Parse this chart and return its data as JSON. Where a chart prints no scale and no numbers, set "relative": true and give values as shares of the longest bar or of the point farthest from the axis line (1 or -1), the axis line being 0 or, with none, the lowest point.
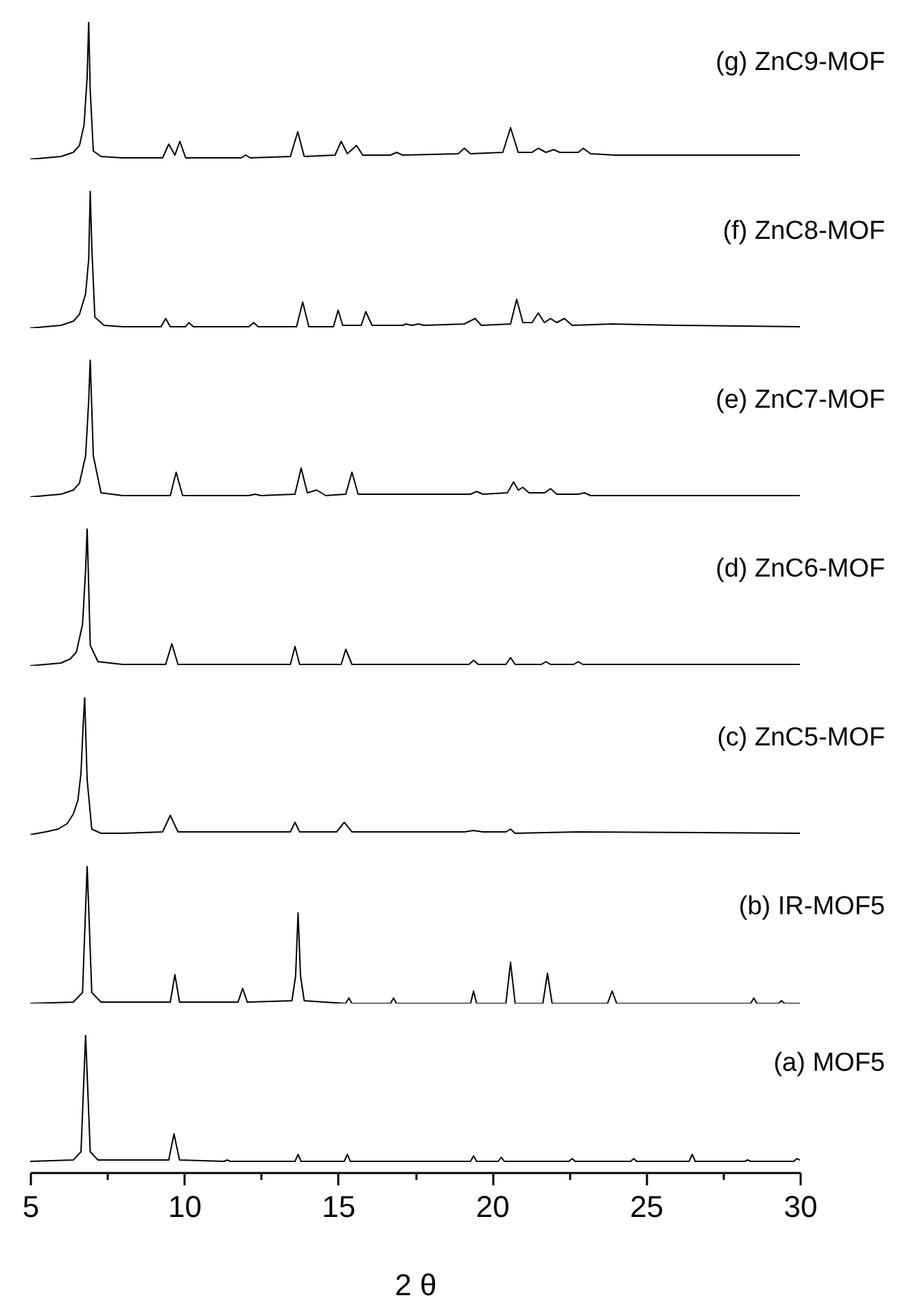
{
  "chart_data": [
    {
      "type": "line",
      "relative": true,
      "xlim": [
        5,
        30
      ],
      "tick_labels": false,
      "x": [
        5,
        6,
        6.4,
        6.6,
        6.75,
        6.85,
        6.9,
        6.95,
        7.05,
        7.3,
        8,
        9.3,
        9.5,
        9.7,
        9.86,
        10.05,
        11,
        11.85,
        12,
        12.15,
        13.45,
        13.69,
        13.9,
        14.9,
        15.1,
        15.3,
        15.6,
        15.8,
        16.7,
        16.9,
        17.1,
        18.9,
        19.1,
        19.3,
        20.35,
        20.6,
        20.85,
        21.3,
        21.5,
        21.75,
        22.0,
        22.2,
        22.8,
        22.96,
        23.2,
        24,
        26,
        28.7,
        30
      ],
      "series": [
        {
          "name": "(g) ZnC9-MOF",
          "color": "#000000",
          "values": [
            0,
            0.02,
            0.05,
            0.1,
            0.25,
            0.6,
            1,
            0.5,
            0.06,
            0.02,
            0.01,
            0.01,
            0.11,
            0.03,
            0.13,
            0.01,
            0.01,
            0.01,
            0.03,
            0.01,
            0.02,
            0.2,
            0.02,
            0.03,
            0.13,
            0.04,
            0.1,
            0.03,
            0.03,
            0.05,
            0.03,
            0.04,
            0.08,
            0.04,
            0.05,
            0.23,
            0.05,
            0.05,
            0.08,
            0.05,
            0.07,
            0.05,
            0.05,
            0.08,
            0.04,
            0.03,
            0.03,
            0.03,
            0.03
          ]
        }
      ]
    },
    {
      "type": "line",
      "relative": true,
      "xlim": [
        5,
        30
      ],
      "tick_labels": false,
      "x": [
        5,
        6,
        6.4,
        6.6,
        6.8,
        6.9,
        6.95,
        7.0,
        7.1,
        7.4,
        8,
        9.25,
        9.4,
        9.55,
        10.05,
        10.15,
        10.3,
        12.1,
        12.26,
        12.4,
        13.65,
        13.85,
        14.05,
        14.85,
        15.0,
        15.15,
        15.75,
        15.9,
        16.1,
        17.1,
        17.2,
        17.4,
        17.6,
        17.8,
        19.1,
        19.45,
        19.65,
        20.6,
        20.8,
        21.0,
        21.3,
        21.5,
        21.7,
        21.9,
        22.1,
        22.35,
        22.6,
        23.9,
        26,
        30
      ],
      "series": [
        {
          "name": "(f) ZnC8-MOF",
          "color": "#000000",
          "values": [
            0,
            0.02,
            0.05,
            0.1,
            0.25,
            0.5,
            1,
            0.6,
            0.08,
            0.02,
            0.01,
            0.01,
            0.07,
            0.01,
            0.01,
            0.04,
            0.01,
            0.01,
            0.04,
            0.01,
            0.01,
            0.19,
            0.01,
            0.01,
            0.13,
            0.02,
            0.02,
            0.12,
            0.02,
            0.02,
            0.03,
            0.02,
            0.03,
            0.02,
            0.03,
            0.07,
            0.02,
            0.03,
            0.21,
            0.04,
            0.04,
            0.11,
            0.04,
            0.07,
            0.04,
            0.07,
            0.02,
            0.03,
            0.02,
            0.01
          ]
        }
      ]
    },
    {
      "type": "line",
      "relative": true,
      "xlim": [
        5,
        30
      ],
      "tick_labels": false,
      "x": [
        5,
        6,
        6.4,
        6.6,
        6.8,
        6.9,
        6.95,
        7.05,
        7.3,
        8,
        9.55,
        9.74,
        9.95,
        12.1,
        12.3,
        12.5,
        13.6,
        13.8,
        14.0,
        14.3,
        14.6,
        15.25,
        15.45,
        15.65,
        19.3,
        19.5,
        19.7,
        20.5,
        20.7,
        20.85,
        21.0,
        21.2,
        21.7,
        21.9,
        22.1,
        22.8,
        23.0,
        23.2,
        26,
        30
      ],
      "series": [
        {
          "name": "(e) ZnC7-MOF",
          "color": "#000000",
          "values": [
            0,
            0.02,
            0.05,
            0.1,
            0.3,
            0.7,
            1,
            0.3,
            0.03,
            0.01,
            0.01,
            0.18,
            0.01,
            0.01,
            0.02,
            0.01,
            0.02,
            0.21,
            0.03,
            0.05,
            0.01,
            0.02,
            0.18,
            0.02,
            0.02,
            0.04,
            0.02,
            0.03,
            0.11,
            0.05,
            0.07,
            0.03,
            0.03,
            0.06,
            0.02,
            0.02,
            0.03,
            0.01,
            0.01,
            0.01
          ]
        }
      ]
    },
    {
      "type": "line",
      "relative": true,
      "xlim": [
        5,
        30
      ],
      "tick_labels": false,
      "x": [
        5,
        6,
        6.3,
        6.5,
        6.7,
        6.8,
        6.85,
        6.95,
        7.2,
        8,
        9.4,
        9.6,
        9.8,
        11.8,
        13.45,
        13.6,
        13.75,
        15.1,
        15.25,
        15.45,
        19.25,
        19.4,
        19.55,
        20.45,
        20.6,
        20.75,
        21.6,
        21.75,
        21.9,
        22.65,
        22.8,
        22.95,
        24,
        26,
        30
      ],
      "series": [
        {
          "name": "(d) ZnC6-MOF",
          "color": "#000000",
          "values": [
            0,
            0.02,
            0.05,
            0.1,
            0.3,
            0.7,
            1,
            0.15,
            0.03,
            0.01,
            0.01,
            0.16,
            0.01,
            0.01,
            0.01,
            0.14,
            0.01,
            0.01,
            0.12,
            0.01,
            0.01,
            0.04,
            0.01,
            0.01,
            0.06,
            0.01,
            0.01,
            0.03,
            0.01,
            0.01,
            0.03,
            0.01,
            0.01,
            0.01,
            0.01
          ]
        }
      ]
    },
    {
      "type": "line",
      "relative": true,
      "xlim": [
        5,
        30
      ],
      "tick_labels": false,
      "x": [
        5,
        5.5,
        5.9,
        6.2,
        6.4,
        6.55,
        6.65,
        6.72,
        6.77,
        6.85,
        7.0,
        7.3,
        8,
        9.3,
        9.55,
        9.8,
        13.45,
        13.6,
        13.75,
        14.95,
        15.2,
        15.45,
        19.1,
        19.4,
        19.7,
        20.45,
        20.6,
        20.75,
        22.8,
        30
      ],
      "series": [
        {
          "name": "(c) ZnC5-MOF",
          "color": "#000000",
          "values": [
            0,
            0.02,
            0.04,
            0.08,
            0.15,
            0.25,
            0.45,
            0.8,
            1,
            0.4,
            0.04,
            0.01,
            0.01,
            0.02,
            0.14,
            0.02,
            0.02,
            0.09,
            0.02,
            0.02,
            0.09,
            0.02,
            0.02,
            0.03,
            0.02,
            0.02,
            0.04,
            0.01,
            0.02,
            0.01
          ]
        }
      ]
    },
    {
      "type": "line",
      "relative": true,
      "xlim": [
        5,
        30
      ],
      "tick_labels": false,
      "x": [
        5,
        6.4,
        6.7,
        6.85,
        7.0,
        7.3,
        9.55,
        9.7,
        9.85,
        11.75,
        11.9,
        12.05,
        13.5,
        13.62,
        13.7,
        13.78,
        13.9,
        15.25,
        15.35,
        15.45,
        16.7,
        16.8,
        16.9,
        19.3,
        19.4,
        19.5,
        20.45,
        20.6,
        20.75,
        21.65,
        21.8,
        21.95,
        23.75,
        23.9,
        24.05,
        28.4,
        28.5,
        28.6,
        29.3,
        29.4,
        29.5,
        30
      ],
      "series": [
        {
          "name": "(b) IR-MOF5",
          "color": "#000000",
          "values": [
            0,
            0.01,
            0.08,
            1,
            0.08,
            0.01,
            0.01,
            0.21,
            0.01,
            0.01,
            0.11,
            0.01,
            0.02,
            0.2,
            0.66,
            0.2,
            0.02,
            0,
            0.04,
            0,
            0,
            0.04,
            0,
            0,
            0.09,
            0,
            0,
            0.3,
            0,
            0,
            0.22,
            0,
            0,
            0.09,
            0,
            0,
            0.04,
            0,
            0,
            0.02,
            0,
            0
          ]
        }
      ]
    },
    {
      "type": "line",
      "relative": true,
      "xlim": [
        5,
        30
      ],
      "tick_labels": "x",
      "xlabel": "2 θ",
      "xticks": [
        5,
        {
          "value": 7.5,
          "label": null
        },
        10,
        {
          "value": 12.5,
          "label": null
        },
        15,
        {
          "value": 17.5,
          "label": null
        },
        20,
        {
          "value": 22.5,
          "label": null
        },
        25,
        {
          "value": 27.5,
          "label": null
        },
        30
      ],
      "x": [
        5,
        6.4,
        6.65,
        6.8,
        6.95,
        7.2,
        9.5,
        9.67,
        9.85,
        11.3,
        11.4,
        11.5,
        13.6,
        13.7,
        13.8,
        15.2,
        15.3,
        15.4,
        19.3,
        19.4,
        19.5,
        20.2,
        20.3,
        20.4,
        22.5,
        22.6,
        22.7,
        24.5,
        24.6,
        24.7,
        26.4,
        26.5,
        26.6,
        28.2,
        28.3,
        28.4,
        29.8,
        29.9,
        30
      ],
      "series": [
        {
          "name": "(a) MOF5",
          "color": "#000000",
          "values": [
            0.08,
            0.09,
            0.15,
            1,
            0.15,
            0.09,
            0.09,
            0.28,
            0.09,
            0.08,
            0.09,
            0.08,
            0.08,
            0.13,
            0.08,
            0.08,
            0.13,
            0.08,
            0.08,
            0.12,
            0.08,
            0.08,
            0.11,
            0.08,
            0.08,
            0.1,
            0.08,
            0.08,
            0.1,
            0.08,
            0.08,
            0.13,
            0.08,
            0.08,
            0.09,
            0.08,
            0.08,
            0.1,
            0.09
          ]
        }
      ]
    }
  ]
}
